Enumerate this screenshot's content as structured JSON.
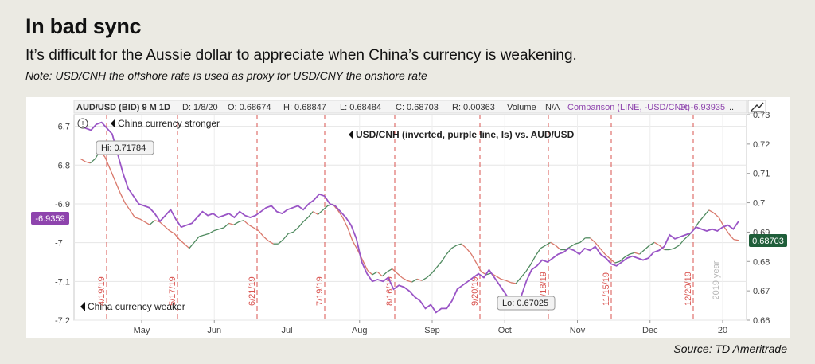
{
  "title": "In bad sync",
  "subtitle": "It’s difficult for the Aussie dollar to appreciate when China’s currency is weakening.",
  "note": "Note: USD/CNH the offshore rate is used as proxy for USD/CNY the onshore rate",
  "source": "Source: TD Ameritrade",
  "header": {
    "symbol": "AUD/USD (BID) 9 M 1D",
    "date": "D: 1/8/20",
    "open": "O: 0.68674",
    "high": "H: 0.68847",
    "low": "L: 0.68484",
    "close": "C: 0.68703",
    "range": "R: 0.00363",
    "volume_label": "Volume",
    "volume_value": "N/A",
    "comparison": "Comparison (LINE, -USD/CNH)",
    "comparison_open": "O: -6.93935",
    "more": ".."
  },
  "annotations": {
    "stronger": "China currency stronger",
    "weaker": "China currency weaker",
    "main": "USD/CNH (inverted, purple line, ls) vs. AUD/USD",
    "hi": "Hi: 0.71784",
    "lo": "Lo: 0.67025",
    "year": "2019 year",
    "left_badge": "-6.9359",
    "right_badge": "0.68703"
  },
  "colors": {
    "aud_line": "#4f8a5f",
    "aud_down": "#d9786b",
    "cnh_line": "#9a55c6",
    "dashed": "#d9534f",
    "left_badge": "#8e44ad",
    "right_badge": "#1f5e3a"
  },
  "chart_data": {
    "type": "line",
    "xlabel": "",
    "ylabel": "",
    "x_ticks": [
      "May",
      "Jun",
      "Jul",
      "Aug",
      "Sep",
      "Oct",
      "Nov",
      "Dec",
      "20"
    ],
    "y_left_ticks": [
      "-6.7",
      "-6.8",
      "-6.9",
      "-7",
      "-7.1",
      "-7.2"
    ],
    "y_left_lim": [
      -7.2,
      -6.67
    ],
    "y_right_ticks": [
      "0.73",
      "0.72",
      "0.71",
      "0.7",
      "0.69",
      "0.68",
      "0.67",
      "0.66"
    ],
    "y_right_lim": [
      0.66,
      0.73
    ],
    "event_dates": [
      "4/19/19",
      "5/17/19",
      "6/21/19",
      "7/19/19",
      "8/16/19",
      "9/20/19",
      "10/18/19",
      "11/15/19",
      "12/20/19"
    ],
    "series": [
      {
        "name": "AUD/USD",
        "axis": "right",
        "values": [
          0.715,
          0.714,
          0.7135,
          0.715,
          0.7178,
          0.7155,
          0.7115,
          0.7075,
          0.7035,
          0.7,
          0.6975,
          0.695,
          0.6945,
          0.6935,
          0.6925,
          0.694,
          0.6935,
          0.692,
          0.6905,
          0.6895,
          0.6875,
          0.686,
          0.6845,
          0.6865,
          0.6885,
          0.689,
          0.6895,
          0.6905,
          0.691,
          0.6915,
          0.693,
          0.6925,
          0.6935,
          0.694,
          0.6925,
          0.6915,
          0.6905,
          0.6885,
          0.687,
          0.686,
          0.686,
          0.6875,
          0.6895,
          0.69,
          0.6915,
          0.6935,
          0.695,
          0.697,
          0.696,
          0.6975,
          0.699,
          0.6995,
          0.6975,
          0.695,
          0.6915,
          0.687,
          0.684,
          0.6805,
          0.677,
          0.6755,
          0.6765,
          0.675,
          0.6765,
          0.6775,
          0.676,
          0.6745,
          0.6735,
          0.673,
          0.674,
          0.6735,
          0.6745,
          0.676,
          0.678,
          0.68,
          0.6825,
          0.6845,
          0.6855,
          0.686,
          0.6845,
          0.6825,
          0.6795,
          0.6765,
          0.6755,
          0.676,
          0.675,
          0.674,
          0.6735,
          0.6728,
          0.6725,
          0.6745,
          0.6765,
          0.679,
          0.682,
          0.6845,
          0.6855,
          0.6865,
          0.6855,
          0.684,
          0.684,
          0.685,
          0.686,
          0.6865,
          0.688,
          0.688,
          0.6865,
          0.6845,
          0.6825,
          0.681,
          0.6795,
          0.68,
          0.6815,
          0.6825,
          0.683,
          0.6825,
          0.684,
          0.6855,
          0.6865,
          0.6855,
          0.684,
          0.684,
          0.6845,
          0.6855,
          0.6875,
          0.689,
          0.691,
          0.6935,
          0.6955,
          0.6975,
          0.6965,
          0.695,
          0.692,
          0.6895,
          0.6875,
          0.6872
        ]
      },
      {
        "name": "USD/CNH (inverted)",
        "axis": "left",
        "values": [
          -6.7,
          -6.705,
          -6.71,
          -6.695,
          -6.69,
          -6.705,
          -6.72,
          -6.77,
          -6.82,
          -6.86,
          -6.88,
          -6.9,
          -6.905,
          -6.91,
          -6.925,
          -6.945,
          -6.93,
          -6.915,
          -6.94,
          -6.96,
          -6.955,
          -6.95,
          -6.935,
          -6.92,
          -6.93,
          -6.925,
          -6.935,
          -6.93,
          -6.925,
          -6.935,
          -6.92,
          -6.93,
          -6.935,
          -6.93,
          -6.92,
          -6.91,
          -6.905,
          -6.92,
          -6.925,
          -6.915,
          -6.91,
          -6.905,
          -6.915,
          -6.9,
          -6.89,
          -6.875,
          -6.88,
          -6.9,
          -6.905,
          -6.92,
          -6.935,
          -6.955,
          -6.99,
          -7.05,
          -7.08,
          -7.1,
          -7.095,
          -7.1,
          -7.09,
          -7.12,
          -7.11,
          -7.115,
          -7.125,
          -7.14,
          -7.15,
          -7.17,
          -7.16,
          -7.18,
          -7.17,
          -7.17,
          -7.15,
          -7.12,
          -7.11,
          -7.1,
          -7.09,
          -7.08,
          -7.09,
          -7.07,
          -7.09,
          -7.11,
          -7.13,
          -7.15,
          -7.145,
          -7.14,
          -7.1,
          -7.07,
          -7.06,
          -7.045,
          -7.05,
          -7.04,
          -7.03,
          -7.025,
          -7.015,
          -7.02,
          -7.03,
          -7.015,
          -7.02,
          -7.01,
          -7.03,
          -7.04,
          -7.055,
          -7.06,
          -7.05,
          -7.04,
          -7.035,
          -7.04,
          -7.045,
          -7.04,
          -7.025,
          -7.02,
          -7.01,
          -6.98,
          -6.99,
          -6.985,
          -6.98,
          -6.975,
          -6.96,
          -6.965,
          -6.97,
          -6.965,
          -6.97,
          -6.96,
          -6.955,
          -6.965,
          -6.945
        ]
      }
    ]
  }
}
